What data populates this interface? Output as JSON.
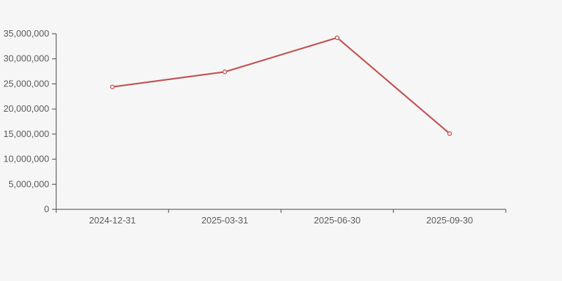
{
  "chart_data": {
    "type": "line",
    "title": "",
    "xlabel": "",
    "ylabel": "",
    "categories": [
      "2024-12-31",
      "2025-03-31",
      "2025-06-30",
      "2025-09-30"
    ],
    "series": [
      {
        "name": "series-1",
        "values": [
          24400000,
          27400000,
          34200000,
          15100000
        ]
      }
    ],
    "ylim": [
      0,
      35000000
    ],
    "y_tick_step": 5000000,
    "y_tick_labels": [
      "0",
      "5,000,000",
      "10,000,000",
      "15,000,000",
      "20,000,000",
      "25,000,000",
      "30,000,000",
      "35,000,000"
    ],
    "grid": false,
    "legend_position": "none",
    "marker": "open-circle",
    "colors": {
      "line": "#c15351",
      "marker_fill": "#f6f6f6",
      "axis": "#444444",
      "tick_text": "#5a5a5a",
      "background": "#f6f6f6"
    }
  }
}
